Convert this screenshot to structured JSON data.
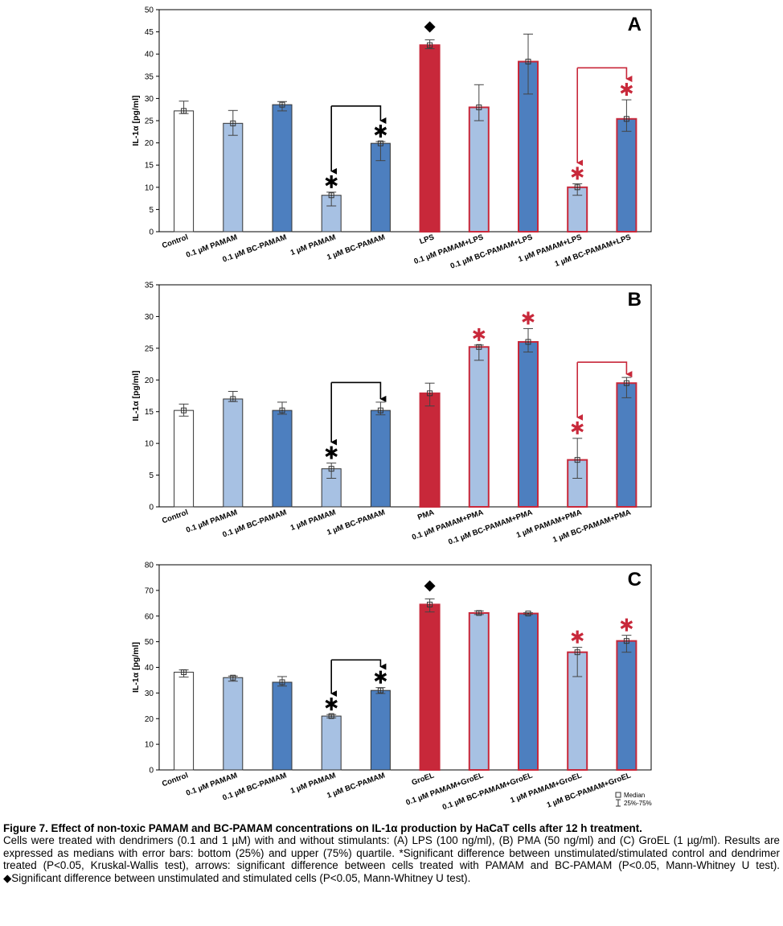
{
  "chart_data": [
    {
      "type": "bar",
      "panel_label": "A",
      "ylabel": "IL-1α [pg/ml]",
      "ylim": [
        0,
        50
      ],
      "yticks": [
        0,
        5,
        10,
        15,
        20,
        25,
        30,
        35,
        40,
        45,
        50
      ],
      "categories": [
        "Control",
        "0.1 µM PAMAM",
        "0.1 µM BC-PAMAM",
        "1 µM PAMAM",
        "1 µM BC-PAMAM",
        "LPS",
        "0.1 µM PAMAM+LPS",
        "0.1 µM BC-PAMAM+LPS",
        "1 µM PAMAM+LPS",
        "1 µM BC-PAMAM+LPS"
      ],
      "median": [
        27.2,
        24.4,
        28.6,
        8.2,
        19.9,
        42.0,
        28.0,
        38.3,
        10.0,
        25.4
      ],
      "q25": [
        26.6,
        21.7,
        27.2,
        5.8,
        16.0,
        41.2,
        25.0,
        31.0,
        8.2,
        22.6
      ],
      "q75": [
        29.4,
        27.3,
        29.3,
        8.9,
        20.3,
        43.2,
        33.1,
        44.5,
        10.8,
        29.7
      ],
      "fill": [
        "white",
        "light",
        "blue",
        "light",
        "blue",
        "red",
        "light",
        "blue",
        "light",
        "blue"
      ],
      "highlight_border": [
        false,
        false,
        false,
        false,
        false,
        true,
        true,
        true,
        true,
        true
      ],
      "black_star": [
        false,
        false,
        false,
        true,
        true,
        false,
        false,
        false,
        false,
        false
      ],
      "red_star": [
        false,
        false,
        false,
        false,
        false,
        false,
        false,
        false,
        true,
        true
      ],
      "diamond": [
        false,
        false,
        false,
        false,
        false,
        true,
        false,
        false,
        false,
        false
      ],
      "arrows": [
        {
          "from": 4,
          "to": 3,
          "level": 28.3,
          "color": "black"
        },
        {
          "from": 9,
          "to": 8,
          "level": 36.9,
          "color": "red"
        }
      ]
    },
    {
      "type": "bar",
      "panel_label": "B",
      "ylabel": "IL-1α [pg/ml]",
      "ylim": [
        0,
        35
      ],
      "yticks": [
        0,
        5,
        10,
        15,
        20,
        25,
        30,
        35
      ],
      "categories": [
        "Control",
        "0.1 µM PAMAM",
        "0.1 µM BC-PAMAM",
        "1 µM PAMAM",
        "1 µM BC-PAMAM",
        "PMA",
        "0.1 µM PAMAM+PMA",
        "0.1 µM BC-PAMAM+PMA",
        "1 µM PAMAM+PMA",
        "1 µM BC-PAMAM+PMA"
      ],
      "median": [
        15.2,
        17.0,
        15.2,
        6.0,
        15.2,
        17.9,
        25.2,
        26.0,
        7.4,
        19.5
      ],
      "q25": [
        14.3,
        16.6,
        14.6,
        4.5,
        14.5,
        15.9,
        23.1,
        24.4,
        4.5,
        17.2
      ],
      "q75": [
        16.2,
        18.2,
        16.5,
        6.9,
        16.5,
        19.5,
        25.5,
        28.1,
        10.8,
        20.4
      ],
      "fill": [
        "white",
        "light",
        "blue",
        "light",
        "blue",
        "red",
        "light",
        "blue",
        "light",
        "blue"
      ],
      "highlight_border": [
        false,
        false,
        false,
        false,
        false,
        true,
        true,
        true,
        true,
        true
      ],
      "black_star": [
        false,
        false,
        false,
        true,
        false,
        false,
        false,
        false,
        false,
        false
      ],
      "red_star": [
        false,
        false,
        false,
        false,
        false,
        false,
        true,
        true,
        true,
        false
      ],
      "diamond": [
        false,
        false,
        false,
        false,
        false,
        false,
        false,
        false,
        false,
        false
      ],
      "arrows": [
        {
          "from": 4,
          "to": 3,
          "level": 19.6,
          "color": "black"
        },
        {
          "from": 9,
          "to": 8,
          "level": 22.8,
          "color": "red"
        }
      ]
    },
    {
      "type": "bar",
      "panel_label": "C",
      "ylabel": "IL-1α [pg/ml]",
      "ylim": [
        0,
        80
      ],
      "yticks": [
        0,
        10,
        20,
        30,
        40,
        50,
        60,
        70,
        80
      ],
      "categories": [
        "Control",
        "0.1 µM PAMAM",
        "0.1 µM BC-PAMAM",
        "1 µM PAMAM",
        "1 µM BC-PAMAM",
        "GroEL",
        "0.1 µM PAMAM+GroEL",
        "0.1 µM BC-PAMAM+GroEL",
        "1 µM PAMAM+GroEL",
        "1 µM BC-PAMAM+GroEL"
      ],
      "median": [
        38.1,
        36.0,
        34.2,
        21.0,
        31.0,
        64.5,
        61.2,
        61.0,
        45.9,
        50.3
      ],
      "q25": [
        36.2,
        34.6,
        32.7,
        20.3,
        29.8,
        61.6,
        60.6,
        60.6,
        36.4,
        45.9
      ],
      "q75": [
        39.0,
        36.6,
        36.4,
        21.6,
        32.1,
        66.7,
        62.0,
        61.3,
        47.8,
        52.5
      ],
      "fill": [
        "white",
        "light",
        "blue",
        "light",
        "blue",
        "red",
        "light",
        "blue",
        "light",
        "blue"
      ],
      "highlight_border": [
        false,
        false,
        false,
        false,
        false,
        true,
        true,
        true,
        true,
        true
      ],
      "black_star": [
        false,
        false,
        false,
        true,
        true,
        false,
        false,
        false,
        false,
        false
      ],
      "red_star": [
        false,
        false,
        false,
        false,
        false,
        false,
        false,
        false,
        true,
        true
      ],
      "diamond": [
        false,
        false,
        false,
        false,
        false,
        true,
        false,
        false,
        false,
        false
      ],
      "arrows": [
        {
          "from": 4,
          "to": 3,
          "level": 42.9,
          "color": "black"
        }
      ],
      "legend": {
        "median": "Median",
        "range": "25%-75%"
      }
    }
  ],
  "colors": {
    "white": "#ffffff",
    "light": "#a7c1e3",
    "blue": "#4d7fbf",
    "red": "#c8283a",
    "highlight": "#c8283a",
    "axis": "#000000",
    "error": "#444444",
    "star_black": "#000000",
    "star_red": "#c8283a"
  },
  "caption": {
    "title": "Figure 7. Effect of non-toxic PAMAM and BC-PAMAM concentrations on IL-1α production by HaCaT cells after 12 h treatment.",
    "line1": "Cells were treated with dendrimers (0.1 and 1 µM) with and without stimulants: (A) LPS (100 ng/ml), (B) PMA (50 ng/ml) and (C) GroEL (1 µg/ml). Results are expressed as medians with error bars: bottom (25%) and upper (75%) quartile. *Significant difference between unstimulated/stimulated control and dendrimer treated (P<0.05, Kruskal-Wallis test), arrows: significant difference between cells treated with PAMAM and BC-PAMAM (P<0.05, Mann-Whitney U test). ◆Significant difference between unstimulated and stimulated cells (P<0.05, Mann-Whitney U test)."
  }
}
